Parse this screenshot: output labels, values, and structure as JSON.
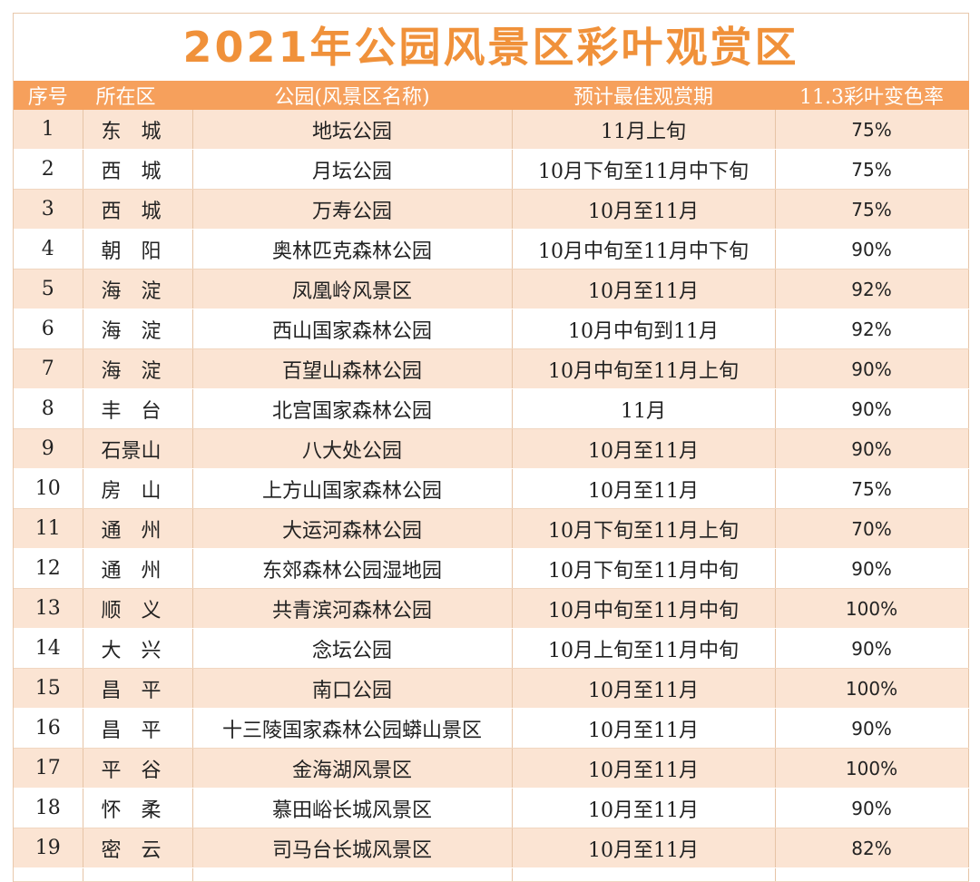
{
  "title": "2021年公园风景区彩叶观赏区",
  "headers": [
    "序号",
    "所在区",
    "公园(风景区名称)",
    "预计最佳观赏期",
    "11.3彩叶变色率"
  ],
  "rows": [
    {
      "no": "1",
      "district": "东　城",
      "park": "地坛公园",
      "period": "11月上旬",
      "rate": "75%"
    },
    {
      "no": "2",
      "district": "西　城",
      "park": "月坛公园",
      "period": "10月下旬至11月中下旬",
      "rate": "75%"
    },
    {
      "no": "3",
      "district": "西　城",
      "park": "万寿公园",
      "period": "10月至11月",
      "rate": "75%"
    },
    {
      "no": "4",
      "district": "朝　阳",
      "park": "奥林匹克森林公园",
      "period": "10月中旬至11月中下旬",
      "rate": "90%"
    },
    {
      "no": "5",
      "district": "海　淀",
      "park": "凤凰岭风景区",
      "period": "10月至11月",
      "rate": "92%"
    },
    {
      "no": "6",
      "district": "海　淀",
      "park": "西山国家森林公园",
      "period": "10月中旬到11月",
      "rate": "92%"
    },
    {
      "no": "7",
      "district": "海　淀",
      "park": "百望山森林公园",
      "period": "10月中旬至11月上旬",
      "rate": "90%"
    },
    {
      "no": "8",
      "district": "丰　台",
      "park": "北宫国家森林公园",
      "period": "11月",
      "rate": "90%"
    },
    {
      "no": "9",
      "district": "石景山",
      "park": "八大处公园",
      "period": "10月至11月",
      "rate": "90%"
    },
    {
      "no": "10",
      "district": "房　山",
      "park": "上方山国家森林公园",
      "period": "10月至11月",
      "rate": "75%"
    },
    {
      "no": "11",
      "district": "通　州",
      "park": "大运河森林公园",
      "period": "10月下旬至11月上旬",
      "rate": "70%"
    },
    {
      "no": "12",
      "district": "通　州",
      "park": "东郊森林公园湿地园",
      "period": "10月下旬至11月中旬",
      "rate": "90%"
    },
    {
      "no": "13",
      "district": "顺　义",
      "park": "共青滨河森林公园",
      "period": "10月中旬至11月中旬",
      "rate": "100%"
    },
    {
      "no": "14",
      "district": "大　兴",
      "park": "念坛公园",
      "period": "10月上旬至11月中旬",
      "rate": "90%"
    },
    {
      "no": "15",
      "district": "昌　平",
      "park": "南口公园",
      "period": "10月至11月",
      "rate": "100%"
    },
    {
      "no": "16",
      "district": "昌　平",
      "park": "十三陵国家森林公园蟒山景区",
      "period": "10月至11月",
      "rate": "90%"
    },
    {
      "no": "17",
      "district": "平　谷",
      "park": "金海湖风景区",
      "period": "10月至11月",
      "rate": "100%"
    },
    {
      "no": "18",
      "district": "怀　柔",
      "park": "慕田峪长城风景区",
      "period": "10月至11月",
      "rate": "90%"
    },
    {
      "no": "19",
      "district": "密　云",
      "park": "司马台长城风景区",
      "period": "10月至11月",
      "rate": "82%"
    }
  ]
}
